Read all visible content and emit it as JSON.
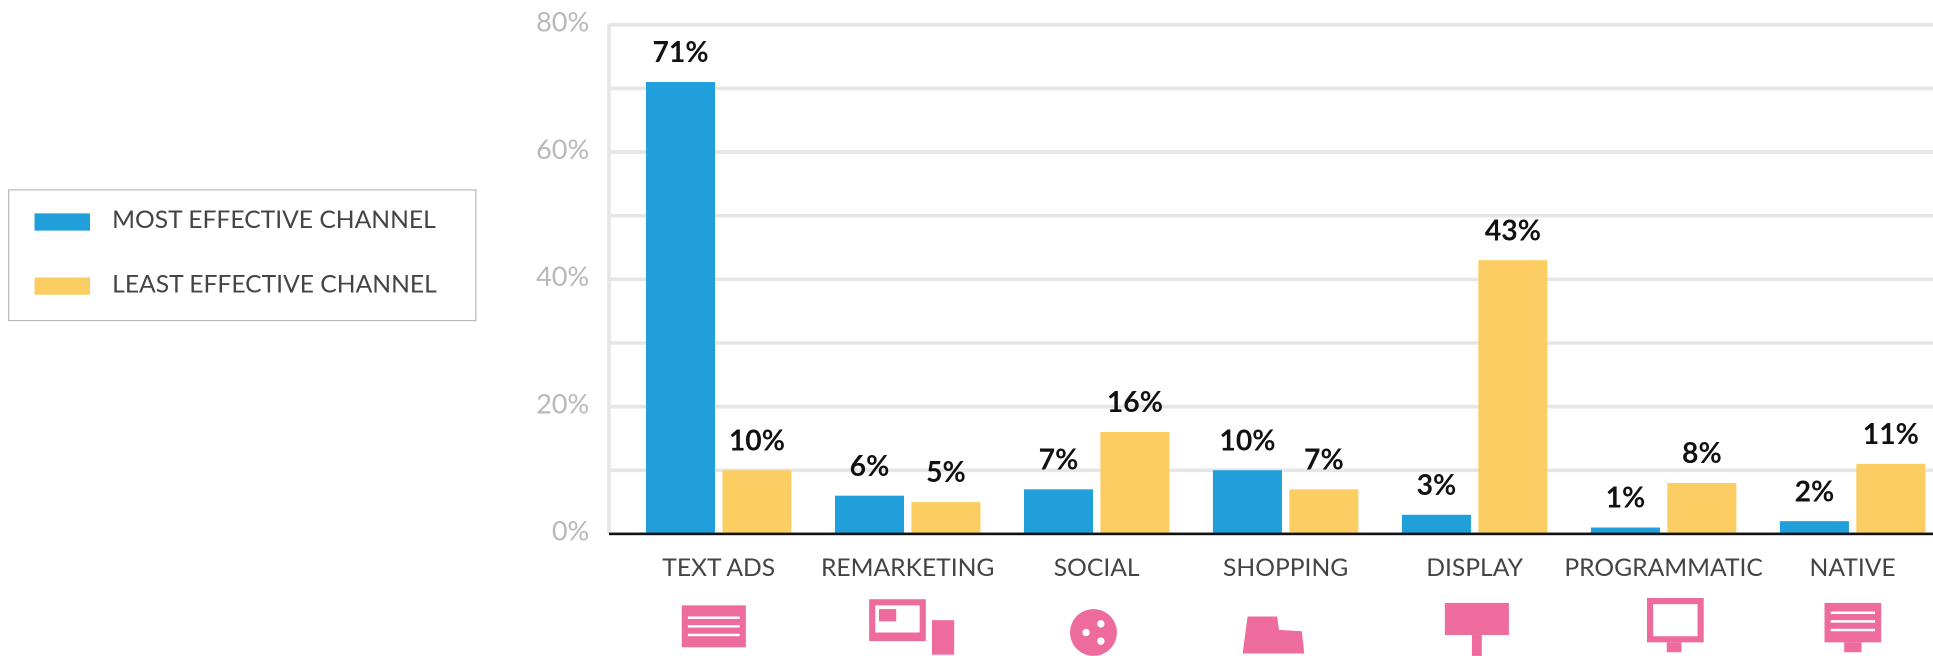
{
  "chart_data": {
    "type": "bar",
    "categories": [
      "TEXT ADS",
      "REMARKETING",
      "SOCIAL",
      "SHOPPING",
      "DISPLAY",
      "PROGRAMMATIC",
      "NATIVE"
    ],
    "series": [
      {
        "name": "MOST EFFECTIVE CHANNEL",
        "color": "#209fdb",
        "values": [
          71,
          6,
          7,
          10,
          3,
          1,
          2
        ],
        "value_labels": [
          "71%",
          "6%",
          "7%",
          "10%",
          "3%",
          "1%",
          "2%"
        ]
      },
      {
        "name": "LEAST EFFECTIVE CHANNEL",
        "color": "#fccd62",
        "values": [
          10,
          5,
          16,
          7,
          43,
          8,
          11
        ],
        "value_labels": [
          "10%",
          "5%",
          "16%",
          "7%",
          "43%",
          "8%",
          "11%"
        ]
      }
    ],
    "ylim": [
      0,
      80
    ],
    "yticks": [
      {
        "value": 0,
        "label": "0%"
      },
      {
        "value": 20,
        "label": "20%"
      },
      {
        "value": 40,
        "label": "40%"
      },
      {
        "value": 60,
        "label": "60%"
      },
      {
        "value": 80,
        "label": "80%"
      }
    ],
    "minor_yticks": [
      10,
      30,
      50,
      70
    ],
    "grid": true,
    "legend": "left"
  }
}
